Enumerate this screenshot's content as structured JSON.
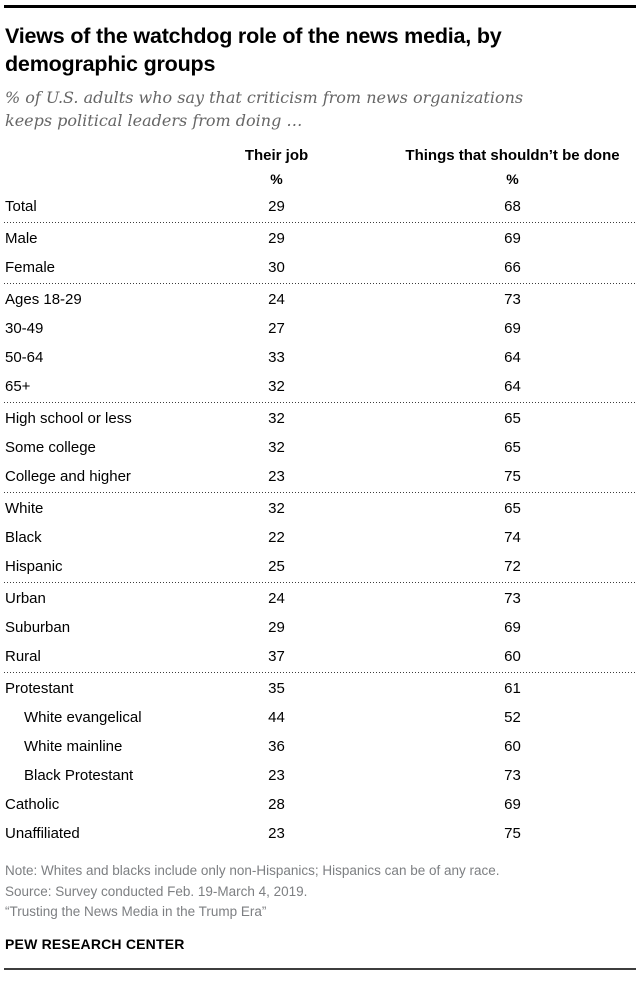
{
  "header": {
    "title": "Views of the watchdog role of the news media, by demographic groups",
    "subtitle": "% of U.S. adults who say that criticism from news organizations keeps political leaders from doing …"
  },
  "table": {
    "columns": [
      "Their job",
      "Things that shouldn’t be done"
    ],
    "unit": "%"
  },
  "chart_data": {
    "type": "table",
    "title": "Views of the watchdog role of the news media, by demographic groups",
    "subtitle": "% of U.S. adults who say that criticism from news organizations keeps political leaders from doing …",
    "columns": [
      "Their job",
      "Things that shouldn’t be done"
    ],
    "unit": "%",
    "groups": [
      {
        "rows": [
          {
            "label": "Total",
            "values": [
              29,
              68
            ]
          }
        ]
      },
      {
        "rows": [
          {
            "label": "Male",
            "values": [
              29,
              69
            ]
          },
          {
            "label": "Female",
            "values": [
              30,
              66
            ]
          }
        ]
      },
      {
        "rows": [
          {
            "label": "Ages 18-29",
            "values": [
              24,
              73
            ]
          },
          {
            "label": "30-49",
            "values": [
              27,
              69
            ]
          },
          {
            "label": "50-64",
            "values": [
              33,
              64
            ]
          },
          {
            "label": "65+",
            "values": [
              32,
              64
            ]
          }
        ]
      },
      {
        "rows": [
          {
            "label": "High school or less",
            "values": [
              32,
              65
            ]
          },
          {
            "label": "Some college",
            "values": [
              32,
              65
            ]
          },
          {
            "label": "College and higher",
            "values": [
              23,
              75
            ]
          }
        ]
      },
      {
        "rows": [
          {
            "label": "White",
            "values": [
              32,
              65
            ]
          },
          {
            "label": "Black",
            "values": [
              22,
              74
            ]
          },
          {
            "label": "Hispanic",
            "values": [
              25,
              72
            ]
          }
        ]
      },
      {
        "rows": [
          {
            "label": "Urban",
            "values": [
              24,
              73
            ]
          },
          {
            "label": "Suburban",
            "values": [
              29,
              69
            ]
          },
          {
            "label": "Rural",
            "values": [
              37,
              60
            ]
          }
        ]
      },
      {
        "rows": [
          {
            "label": "Protestant",
            "values": [
              35,
              61
            ]
          },
          {
            "label": "White evangelical",
            "indent": true,
            "values": [
              44,
              52
            ]
          },
          {
            "label": "White mainline",
            "indent": true,
            "values": [
              36,
              60
            ]
          },
          {
            "label": "Black Protestant",
            "indent": true,
            "values": [
              23,
              73
            ]
          },
          {
            "label": "Catholic",
            "values": [
              28,
              69
            ]
          },
          {
            "label": "Unaffiliated",
            "values": [
              23,
              75
            ]
          }
        ]
      }
    ]
  },
  "footer": {
    "note": "Note: Whites and blacks include only non-Hispanics; Hispanics can be of any race.",
    "source": "Source: Survey conducted Feb. 19-March 4, 2019.",
    "report_title": "“Trusting the News Media in the Trump Era”",
    "brand": "PEW RESEARCH CENTER"
  },
  "colors": {
    "top_rule": "#000000",
    "bottom_rule": "#3d3d3d",
    "subtitle_gray": "#666666",
    "note_gray": "#7d7f82",
    "dotted_separator": "#3c3c3c"
  }
}
